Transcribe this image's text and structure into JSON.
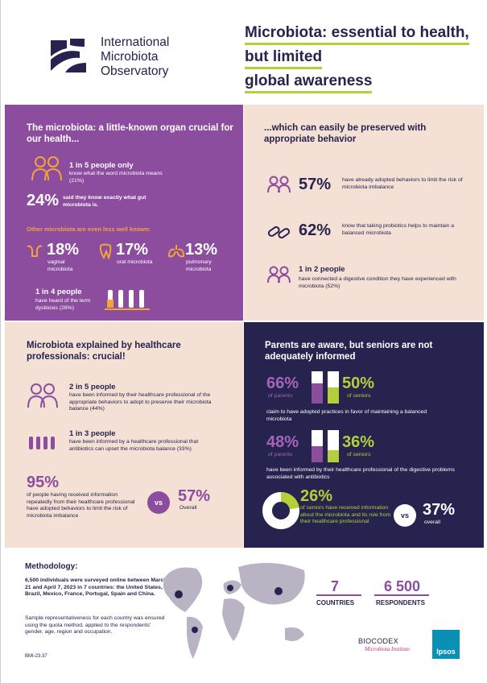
{
  "header": {
    "logo_text": [
      "International",
      "Microbiota",
      "Observatory"
    ],
    "title_lines": [
      "Microbiota: essential to health,",
      "but limited",
      "global awareness"
    ]
  },
  "organ": {
    "heading": "The microbiota: a little-known organ crucial for our health...",
    "stat1": "1 in 5 people only",
    "stat1_text": "know what the word microbiota means (21%)",
    "stat2": "24%",
    "stat2_text": "said they know exactly what gut microbiota is.",
    "other": "Other microbiota are even less well known:",
    "vaginal": "18%",
    "vaginal_text": "vaginal microbiota",
    "oral": "17%",
    "oral_text": "oral microbiota",
    "pulmonary": "13%",
    "pulmonary_text": "pulmonary microbiota",
    "stat3": "1 in 4 people",
    "stat3_text": "have heard of the term dysbiosis (28%)"
  },
  "behavior": {
    "heading": "...which can easily be preserved with appropriate behavior",
    "stat1": "57%",
    "stat1_text": "have already adopted behaviors to limit the risk of microbiota imbalance",
    "stat2": "62%",
    "stat2_text": "know that taking probiotics helps to maintain a balanced microbiota",
    "stat3": "1 in 2 people",
    "stat3_text": "have connected a digestive condition they have experienced with microbiota (52%)"
  },
  "professionals": {
    "heading": "Microbiota explained by healthcare professionals: crucial!",
    "stat1": "2 in 5 people",
    "stat1_text": "have been informed by their healthcare professional of the appropriate behaviors to adopt to preserve their microbiota balance (44%)",
    "stat2": "1 in 3 people",
    "stat2_text": "have been informed by a healthcare professional that antibiotics can upset the microbiota balance (33%)",
    "stat3": "95%",
    "stat3_text": "of people having received information repeatedly from their healthcare professional have adopted behaviors to limit the risk of microbiota imbalance",
    "vs": "vs",
    "overall": "57%",
    "overall_label": "Overall"
  },
  "parents": {
    "heading": "Parents are aware, but seniors are not adequately informed",
    "row1_parents": "66%",
    "row1_parents_label": "of parents",
    "row1_seniors": "50%",
    "row1_seniors_label": "of seniors",
    "row1_text": "claim to have adopted practices in favor of maintaining a balanced microbiota",
    "row2_parents": "48%",
    "row2_parents_label": "of parents",
    "row2_seniors": "36%",
    "row2_seniors_label": "of seniors",
    "row2_text": "have been informed by their healthcare professional of the digestive problems associated with antibiotics",
    "seniors": "26%",
    "seniors_text": "of seniors have received information about the microbiota and its role from their healthcare professional",
    "vs": "vs",
    "overall": "37%",
    "overall_label": "overall"
  },
  "methodology": {
    "heading": "Methodology:",
    "text1": "6,500 individuals were surveyed online between March 21 and April 7, 2023 in 7 countries: the United States, Brazil, Mexico, France, Portugal, Spain and China.",
    "text2": "Sample representativeness for each country was ensured using the quota method, applied to the respondents' gender, age, region and occupation.",
    "ref": "BMI-23.37",
    "countries": "7",
    "countries_label": "COUNTRIES",
    "respondents": "6 500",
    "respondents_label": "RESPONDENTS",
    "brand": "BIOCODEX",
    "brand_sub": "Microbiota Institute",
    "partner": "Ipsos"
  }
}
